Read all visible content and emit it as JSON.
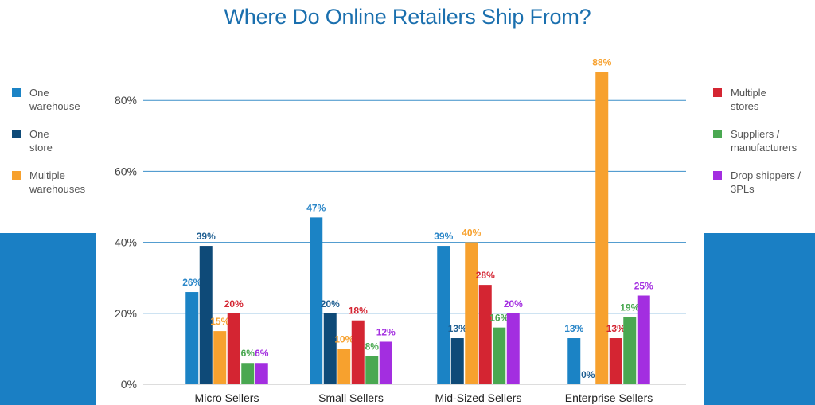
{
  "title": "Where Do Online Retailers Ship From?",
  "colors": {
    "band": "#1a7fc4",
    "grid": "#3b8fc9",
    "title": "#1a6fae"
  },
  "legend_left": [
    {
      "label": "One\nwarehouse",
      "color": "#1b83c5"
    },
    {
      "label": "One\nstore",
      "color": "#0e4a78"
    },
    {
      "label": "Multiple\nwarehouses",
      "color": "#f7a12e"
    }
  ],
  "legend_right": [
    {
      "label": "Multiple\nstores",
      "color": "#d42532"
    },
    {
      "label": "Suppliers /\nmanufacturers",
      "color": "#4aa851"
    },
    {
      "label": "Drop shippers /\n3PLs",
      "color": "#a32ee0"
    }
  ],
  "chart_data": {
    "type": "bar",
    "title": "Where Do Online Retailers Ship From?",
    "xlabel": "",
    "ylabel": "",
    "ylim": [
      0,
      90
    ],
    "yticks": [
      0,
      20,
      40,
      60,
      80
    ],
    "ytick_labels": [
      "0%",
      "20%",
      "40%",
      "60%",
      "80%"
    ],
    "grid": true,
    "legend": "split left and right",
    "categories": [
      "Micro Sellers",
      "Small Sellers",
      "Mid-Sized Sellers",
      "Enterprise Sellers"
    ],
    "series": [
      {
        "name": "One warehouse",
        "color": "#1b83c5",
        "label_color": "#2a86c8",
        "values": [
          26,
          47,
          39,
          13
        ],
        "labels": [
          "26%",
          "47%",
          "39%",
          "13%"
        ]
      },
      {
        "name": "One store",
        "color": "#0e4a78",
        "label_color": "#1f5f92",
        "values": [
          39,
          20,
          13,
          0
        ],
        "labels": [
          "39%",
          "20%",
          "13%",
          "0%"
        ]
      },
      {
        "name": "Multiple warehouses",
        "color": "#f7a12e",
        "label_color": "#f7a12e",
        "values": [
          15,
          10,
          40,
          88
        ],
        "labels": [
          "15%",
          "10%",
          "40%",
          "88%"
        ]
      },
      {
        "name": "Multiple stores",
        "color": "#d42532",
        "label_color": "#d42532",
        "values": [
          20,
          18,
          28,
          13
        ],
        "labels": [
          "20%",
          "18%",
          "28%",
          "13%"
        ]
      },
      {
        "name": "Suppliers / manufacturers",
        "color": "#4aa851",
        "label_color": "#4aa851",
        "values": [
          6,
          8,
          16,
          19
        ],
        "labels": [
          "6%",
          "8%",
          "16%",
          "19%"
        ]
      },
      {
        "name": "Drop shippers / 3PLs",
        "color": "#a32ee0",
        "label_color": "#a32ee0",
        "values": [
          6,
          12,
          20,
          25
        ],
        "labels": [
          "6%",
          "12%",
          "20%",
          "25%"
        ]
      }
    ]
  }
}
